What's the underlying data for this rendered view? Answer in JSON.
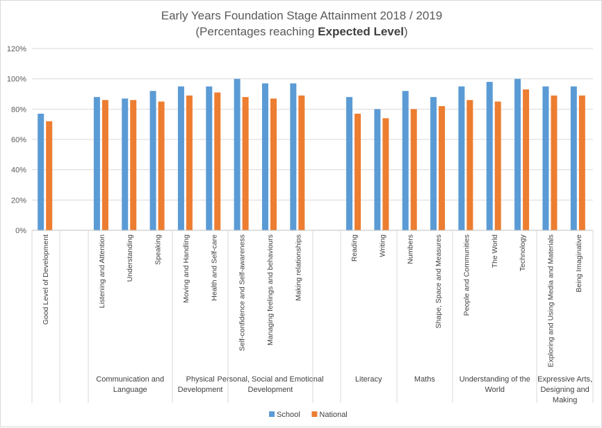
{
  "chart_data": {
    "type": "bar",
    "title": "Early Years Foundation Stage Attainment 2018 / 2019",
    "subtitle_prefix": "(Percentages reaching ",
    "subtitle_bold": "Expected Level",
    "subtitle_suffix": ")",
    "ylim": [
      0,
      120
    ],
    "yticks": [
      "0%",
      "20%",
      "40%",
      "60%",
      "80%",
      "100%",
      "120%"
    ],
    "grid": true,
    "legend_position": "bottom",
    "colors": {
      "School": "#5b9bd5",
      "National": "#ed7d31"
    },
    "categories": [
      "Good Level of Development",
      "Listening and Attention",
      "Understanding",
      "Speaking",
      "Moving and Handling",
      "Health and Self-care",
      "Self-confidence and Self-awareness",
      "Managing feelings and behaviours",
      "Making relationships",
      "Reading",
      "Writing",
      "Numbers",
      "Shape, Space and Measures",
      "People and Communities",
      "The World",
      "Technology",
      "Exploring and Using Media and Materials",
      "Being Imaginative"
    ],
    "groups": [
      {
        "label": [
          "",
          ""
        ],
        "start": 0,
        "end": 0
      },
      {
        "label": [
          "Communication and",
          "Language"
        ],
        "start": 1,
        "end": 3
      },
      {
        "label": [
          "Physical",
          "Development"
        ],
        "start": 4,
        "end": 5
      },
      {
        "label": [
          "Personal, Social and Emotional",
          "Development"
        ],
        "start": 6,
        "end": 8
      },
      {
        "label": [
          "Literacy"
        ],
        "start": 9,
        "end": 10
      },
      {
        "label": [
          "Maths"
        ],
        "start": 11,
        "end": 12
      },
      {
        "label": [
          "Understanding of the",
          "World"
        ],
        "start": 13,
        "end": 15
      },
      {
        "label": [
          "Expressive Arts,",
          "Designing and",
          "Making"
        ],
        "start": 16,
        "end": 17
      }
    ],
    "series": [
      {
        "name": "School",
        "values": [
          77,
          88,
          87,
          92,
          95,
          95,
          100,
          97,
          97,
          88,
          80,
          92,
          88,
          95,
          98,
          100,
          95,
          95
        ]
      },
      {
        "name": "National",
        "values": [
          72,
          86,
          86,
          85,
          89,
          91,
          88,
          87,
          89,
          77,
          74,
          80,
          82,
          86,
          85,
          93,
          89,
          89
        ]
      }
    ]
  }
}
